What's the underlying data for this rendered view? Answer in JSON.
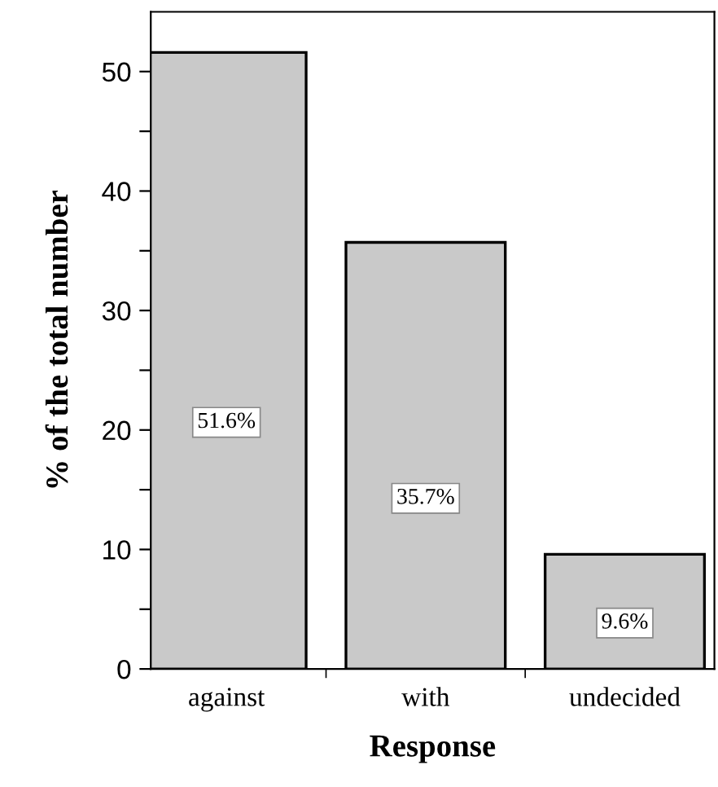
{
  "chart_data": {
    "type": "bar",
    "xlabel": "Response",
    "ylabel": "% of the total number",
    "categories": [
      "against",
      "with",
      "undecided"
    ],
    "values": [
      51.6,
      35.7,
      9.6
    ],
    "value_labels": [
      "51.6%",
      "35.7%",
      "9.6%"
    ],
    "color": "#c9c9c9",
    "ylim": [
      0,
      55
    ],
    "yticks": [
      0,
      {
        "value": 5,
        "label": null
      },
      10,
      {
        "value": 15,
        "label": null
      },
      20,
      {
        "value": 25,
        "label": null
      },
      30,
      {
        "value": 35,
        "label": null
      },
      40,
      {
        "value": 45,
        "label": null
      },
      50
    ],
    "grid": false,
    "legend": false
  }
}
